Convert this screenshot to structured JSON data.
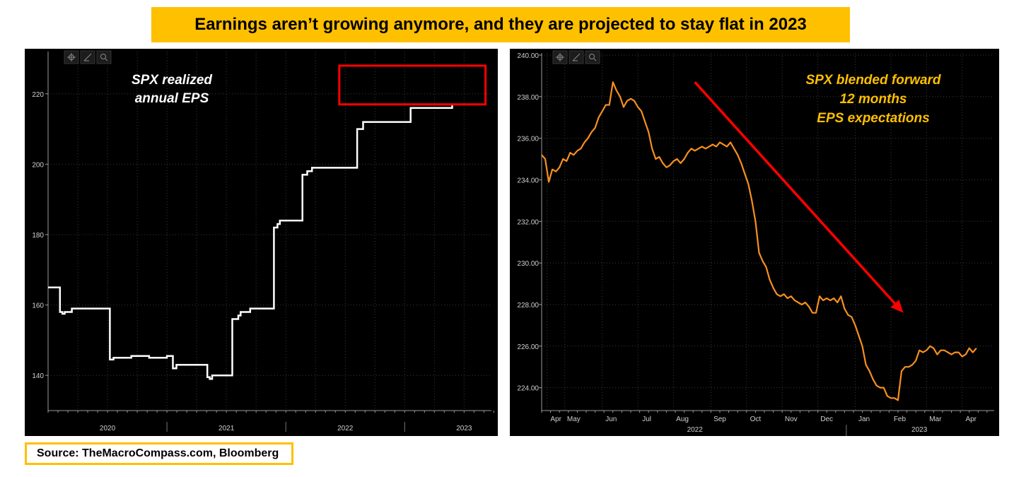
{
  "title": "Earnings aren’t growing anymore, and they are projected to stay flat in 2023",
  "source": "Source: TheMacroCompass.com, Bloomberg",
  "colors": {
    "banner": "#ffc000",
    "left_line": "#ffffff",
    "right_line": "#f7901e",
    "arrow": "#ff0000",
    "highlight_box": "#ff0000"
  },
  "toolbar_icons": [
    "crosshair-icon",
    "draw-line-icon",
    "magnifier-icon"
  ],
  "chart_data": [
    {
      "type": "line",
      "annotation": [
        "SPX realized",
        "annual EPS"
      ],
      "y_axis_position": "left",
      "ylim": [
        130,
        232
      ],
      "yticks": [
        "140",
        "160",
        "180",
        "200",
        "220"
      ],
      "ytick_values": [
        140,
        160,
        180,
        200,
        220
      ],
      "xlim": [
        2019.5,
        2023.23
      ],
      "xtick_labels": [
        {
          "label": "2020",
          "x": 2020.0
        },
        {
          "label": "2021",
          "x": 2021.0
        },
        {
          "label": "2022",
          "x": 2022.0
        },
        {
          "label": "2023",
          "x": 2023.0
        }
      ],
      "year_separators": [
        2020.5,
        2021.5,
        2022.5
      ],
      "grid": true,
      "step": true,
      "highlight_range": {
        "x": [
          2021.95,
          2023.18
        ],
        "y": [
          217,
          228
        ]
      },
      "series": [
        {
          "x": [
            2019.5,
            2019.58,
            2019.6,
            2019.62,
            2019.64,
            2019.65,
            2019.7,
            2019.9,
            2019.98,
            2019.99,
            2020.0,
            2020.02,
            2020.05,
            2020.2,
            2020.28,
            2020.3,
            2020.33,
            2020.35,
            2020.5,
            2020.55,
            2020.58,
            2020.7,
            2020.75,
            2020.8,
            2020.82,
            2020.83,
            2020.84,
            2020.86,
            2020.88,
            2020.9,
            2020.95,
            2021.0,
            2021.05,
            2021.1,
            2021.12,
            2021.15,
            2021.2,
            2021.25,
            2021.3,
            2021.38,
            2021.4,
            2021.43,
            2021.45,
            2021.5,
            2021.55,
            2021.62,
            2021.64,
            2021.68,
            2021.72,
            2021.75,
            2021.78,
            2021.8,
            2021.85,
            2021.9,
            2021.95,
            2022.05,
            2022.1,
            2022.15,
            2022.3,
            2022.35,
            2022.4,
            2022.42,
            2022.45,
            2022.48,
            2022.55,
            2022.65,
            2022.78,
            2022.8,
            2022.82,
            2022.84,
            2022.9,
            2023.1
          ],
          "y": [
            165,
            165,
            158,
            157.5,
            158,
            158,
            159,
            159,
            159,
            159,
            159,
            144.5,
            145,
            145.5,
            145.5,
            145.5,
            145.5,
            145,
            145.5,
            142,
            143,
            143,
            143,
            143,
            143,
            143,
            139.5,
            139,
            140,
            140,
            140,
            140,
            156,
            157,
            158,
            158,
            159,
            159,
            159,
            159,
            182,
            183,
            184,
            184,
            184,
            184,
            197,
            198,
            199,
            199,
            199,
            199,
            199,
            199,
            199,
            199,
            210,
            212,
            212,
            212,
            212,
            212,
            212,
            212,
            216,
            216,
            216,
            216,
            216,
            216,
            217,
            217
          ]
        }
      ]
    },
    {
      "type": "line",
      "annotation": [
        "SPX blended forward",
        "12 months",
        "EPS expectations"
      ],
      "y_axis_position": "left",
      "ylim": [
        222.9,
        240.1
      ],
      "yticks": [
        "224.00",
        "226.00",
        "228.00",
        "230.00",
        "232.00",
        "234.00",
        "236.00",
        "238.00",
        "240.00"
      ],
      "ytick_values": [
        224,
        226,
        228,
        230,
        232,
        234,
        236,
        238,
        240
      ],
      "xlim": [
        -0.2,
        12.5
      ],
      "xtick_labels": [
        {
          "label": "Apr",
          "x": 0.2
        },
        {
          "label": "May",
          "x": 0.7
        },
        {
          "label": "Jun",
          "x": 1.75
        },
        {
          "label": "Jul",
          "x": 2.75
        },
        {
          "label": "Aug",
          "x": 3.75
        },
        {
          "label": "Sep",
          "x": 4.8
        },
        {
          "label": "Oct",
          "x": 5.8
        },
        {
          "label": "Nov",
          "x": 6.8
        },
        {
          "label": "Dec",
          "x": 7.8
        },
        {
          "label": "Jan",
          "x": 8.85
        },
        {
          "label": "Feb",
          "x": 9.85
        },
        {
          "label": "Mar",
          "x": 10.85
        },
        {
          "label": "Apr",
          "x": 11.85
        }
      ],
      "year_labels": [
        {
          "label": "2022",
          "x": 4.1
        },
        {
          "label": "2023",
          "x": 10.4
        }
      ],
      "year_separator": 8.35,
      "grid": true,
      "arrow": {
        "from": [
          4.1,
          238.7
        ],
        "to": [
          9.95,
          227.6
        ]
      },
      "series": [
        {
          "x": [
            -0.2,
            -0.1,
            0.0,
            0.1,
            0.2,
            0.3,
            0.4,
            0.5,
            0.6,
            0.7,
            0.8,
            0.9,
            1.0,
            1.1,
            1.2,
            1.3,
            1.4,
            1.5,
            1.6,
            1.7,
            1.8,
            1.9,
            2.0,
            2.1,
            2.2,
            2.3,
            2.4,
            2.5,
            2.6,
            2.7,
            2.8,
            2.9,
            3.0,
            3.1,
            3.2,
            3.3,
            3.4,
            3.5,
            3.6,
            3.7,
            3.8,
            3.9,
            4.0,
            4.1,
            4.2,
            4.3,
            4.4,
            4.5,
            4.6,
            4.7,
            4.8,
            4.9,
            5.0,
            5.1,
            5.2,
            5.3,
            5.4,
            5.5,
            5.6,
            5.7,
            5.8,
            5.9,
            6.0,
            6.1,
            6.2,
            6.3,
            6.4,
            6.5,
            6.6,
            6.7,
            6.8,
            6.9,
            7.0,
            7.1,
            7.2,
            7.3,
            7.4,
            7.5,
            7.6,
            7.7,
            7.8,
            7.9,
            8.0,
            8.1,
            8.2,
            8.3,
            8.4,
            8.5,
            8.6,
            8.7,
            8.8,
            8.9,
            9.0,
            9.1,
            9.2,
            9.3,
            9.4,
            9.5,
            9.6,
            9.7,
            9.8,
            9.9,
            10.0,
            10.1,
            10.2,
            10.3,
            10.4,
            10.5,
            10.6,
            10.7,
            10.8,
            10.9,
            11.0,
            11.1,
            11.2,
            11.3,
            11.4,
            11.5,
            11.6,
            11.7,
            11.8,
            11.9,
            12.0
          ],
          "y": [
            235.2,
            235.0,
            233.9,
            234.5,
            234.4,
            234.6,
            235.0,
            234.9,
            235.3,
            235.2,
            235.4,
            235.5,
            235.8,
            236.0,
            236.3,
            236.5,
            237.0,
            237.3,
            237.6,
            237.6,
            238.7,
            238.3,
            238.0,
            237.5,
            237.8,
            237.9,
            237.8,
            237.5,
            237.3,
            236.8,
            236.3,
            235.5,
            235.0,
            235.1,
            234.8,
            234.6,
            234.7,
            234.9,
            235.0,
            234.8,
            235.0,
            235.3,
            235.5,
            235.4,
            235.5,
            235.6,
            235.5,
            235.6,
            235.7,
            235.6,
            235.8,
            235.7,
            235.6,
            235.8,
            235.5,
            235.2,
            234.8,
            234.3,
            233.8,
            233.0,
            232.0,
            230.5,
            230.1,
            229.8,
            229.2,
            228.8,
            228.5,
            228.4,
            228.5,
            228.3,
            228.4,
            228.2,
            228.1,
            228.0,
            228.1,
            227.9,
            227.6,
            227.6,
            228.4,
            228.2,
            228.3,
            228.2,
            228.3,
            228.1,
            228.4,
            227.8,
            227.5,
            227.4,
            227.0,
            226.5,
            226.0,
            225.1,
            224.8,
            224.4,
            224.1,
            224.0,
            224.0,
            223.6,
            223.5,
            223.5,
            223.4,
            224.8,
            225.0,
            225.0,
            225.1,
            225.3,
            225.8,
            225.7,
            225.8,
            226.0,
            225.9,
            225.6,
            225.8,
            225.8,
            225.7,
            225.6,
            225.7,
            225.7,
            225.5,
            225.6,
            225.9,
            225.7,
            225.9
          ]
        }
      ]
    }
  ]
}
